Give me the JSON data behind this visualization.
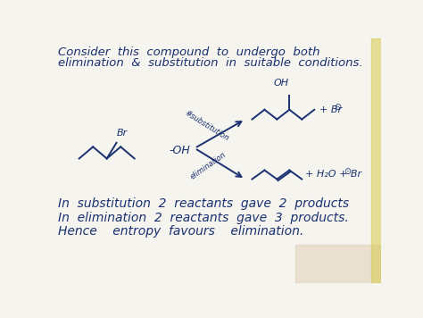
{
  "background_color": "#e8e8e0",
  "paper_color": "#f5f4ee",
  "text_color": "#1a3070",
  "title_line1": "Consider  this  compound  to  undergo  both",
  "title_line2": "elimination  &  substitution  in  suitable  conditions.",
  "line1": "In  substitution  2  reactants  gave  2  products",
  "line2": "In  elimination  2  reactants  gave  3  products.",
  "line3": "Hence    entropy  favours    elimination.",
  "subst_label": "#substitution",
  "elim_label": "elimination",
  "br_label": "Br",
  "oh_label": "-OH",
  "oh2_label": "OH",
  "h2o_br": "+ H₂O + Br",
  "plus_br": "+ Br"
}
